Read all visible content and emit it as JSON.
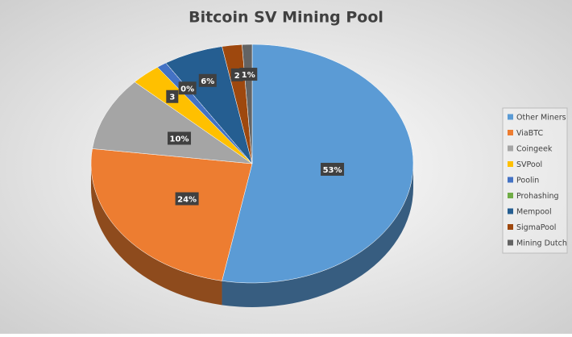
{
  "chart_data": {
    "type": "pie",
    "title": "Bitcoin SV Mining Pool",
    "categories": [
      "Other Miners",
      "ViaBTC",
      "Coingeek",
      "SVPool",
      "Poolin",
      "Prohashing",
      "Mempool",
      "SigmaPool",
      "Mining Dutch"
    ],
    "values": [
      53,
      24,
      10,
      3,
      1,
      0,
      6,
      2,
      1
    ],
    "value_labels": [
      "53%",
      "24%",
      "10%",
      "3",
      null,
      "0%",
      "6%",
      "2",
      "1%"
    ],
    "colors": [
      "#5b9bd5",
      "#ed7d31",
      "#a5a5a5",
      "#ffc000",
      "#4472c4",
      "#70ad47",
      "#255e91",
      "#9e480e",
      "#636363"
    ],
    "legend": "right"
  }
}
